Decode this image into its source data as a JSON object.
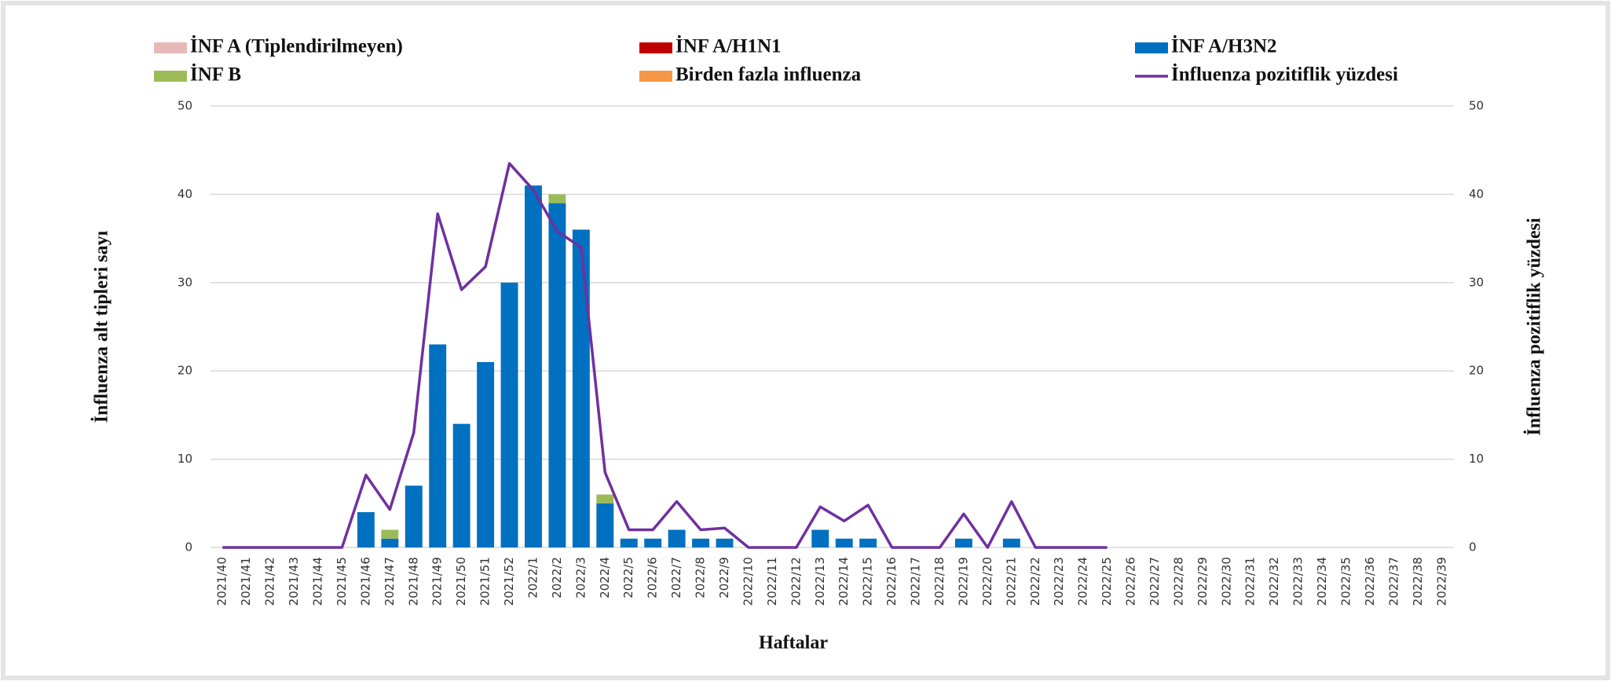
{
  "chart_data": {
    "type": "bar",
    "categories": [
      "2021/40",
      "2021/41",
      "2021/42",
      "2021/43",
      "2021/44",
      "2021/45",
      "2021/46",
      "2021/47",
      "2021/48",
      "2021/49",
      "2021/50",
      "2021/51",
      "2021/52",
      "2022/1",
      "2022/2",
      "2022/3",
      "2022/4",
      "2022/5",
      "2022/6",
      "2022/7",
      "2022/8",
      "2022/9",
      "2022/10",
      "2022/11",
      "2022/12",
      "2022/13",
      "2022/14",
      "2022/15",
      "2022/16",
      "2022/17",
      "2022/18",
      "2022/19",
      "2022/20",
      "2022/21",
      "2022/22",
      "2022/23",
      "2022/24",
      "2022/25",
      "2022/26",
      "2022/27",
      "2022/28",
      "2022/29",
      "2022/30",
      "2022/31",
      "2022/32",
      "2022/33",
      "2022/34",
      "2022/35",
      "2022/36",
      "2022/37",
      "2022/38",
      "2022/39"
    ],
    "series": [
      {
        "name": "İNF A (Tiplendirilmeyen)",
        "color": "#e6b9b8",
        "values": [
          0,
          0,
          0,
          0,
          0,
          0,
          0,
          0,
          0,
          0,
          0,
          0,
          0,
          0,
          0,
          0,
          0,
          0,
          0,
          0,
          0,
          0,
          0,
          0,
          0,
          0,
          0,
          0,
          0,
          0,
          0,
          0,
          0,
          0,
          0,
          0,
          0,
          0,
          null,
          null,
          null,
          null,
          null,
          null,
          null,
          null,
          null,
          null,
          null,
          null,
          null,
          null
        ]
      },
      {
        "name": "İNF A/H1N1",
        "color": "#c00000",
        "values": [
          0,
          0,
          0,
          0,
          0,
          0,
          0,
          0,
          0,
          0,
          0,
          0,
          0,
          0,
          0,
          0,
          0,
          0,
          0,
          0,
          0,
          0,
          0,
          0,
          0,
          0,
          0,
          0,
          0,
          0,
          0,
          0,
          0,
          0,
          0,
          0,
          0,
          0,
          null,
          null,
          null,
          null,
          null,
          null,
          null,
          null,
          null,
          null,
          null,
          null,
          null,
          null
        ]
      },
      {
        "name": "İNF A/H3N2",
        "color": "#0070c0",
        "values": [
          0,
          0,
          0,
          0,
          0,
          0,
          4,
          1,
          7,
          23,
          14,
          21,
          30,
          41,
          39,
          36,
          5,
          1,
          1,
          2,
          1,
          1,
          0,
          0,
          0,
          2,
          1,
          1,
          0,
          0,
          0,
          1,
          0,
          1,
          0,
          0,
          0,
          0,
          null,
          null,
          null,
          null,
          null,
          null,
          null,
          null,
          null,
          null,
          null,
          null,
          null,
          null
        ]
      },
      {
        "name": "İNF B",
        "color": "#9bbb59",
        "values": [
          0,
          0,
          0,
          0,
          0,
          0,
          0,
          1,
          0,
          0,
          0,
          0,
          0,
          0,
          1,
          0,
          1,
          0,
          0,
          0,
          0,
          0,
          0,
          0,
          0,
          0,
          0,
          0,
          0,
          0,
          0,
          0,
          0,
          0,
          0,
          0,
          0,
          0,
          null,
          null,
          null,
          null,
          null,
          null,
          null,
          null,
          null,
          null,
          null,
          null,
          null,
          null
        ]
      },
      {
        "name": "Birden fazla influenza",
        "color": "#f79646",
        "values": [
          0,
          0,
          0,
          0,
          0,
          0,
          0,
          0,
          0,
          0,
          0,
          0,
          0,
          0,
          0,
          0,
          0,
          0,
          0,
          0,
          0,
          0,
          0,
          0,
          0,
          0,
          0,
          0,
          0,
          0,
          0,
          0,
          0,
          0,
          0,
          0,
          0,
          0,
          null,
          null,
          null,
          null,
          null,
          null,
          null,
          null,
          null,
          null,
          null,
          null,
          null,
          null
        ]
      },
      {
        "name": "İnfluenza pozitiflik yüzdesi",
        "color": "#7030a0",
        "type": "line",
        "axis": "y2",
        "values": [
          0,
          0,
          0,
          0,
          0,
          0,
          8.2,
          4.3,
          13,
          37.8,
          29.2,
          31.8,
          43.5,
          40.5,
          35.8,
          34,
          8.5,
          2,
          2,
          5.2,
          2,
          2.2,
          0,
          0,
          0,
          4.6,
          3,
          4.8,
          0,
          0,
          0,
          3.8,
          0,
          5.2,
          0,
          0,
          0,
          0,
          null,
          null,
          null,
          null,
          null,
          null,
          null,
          null,
          null,
          null,
          null,
          null,
          null,
          null
        ]
      }
    ],
    "ylabel": "İnfluenza alt tipleri sayı",
    "y2label": "İnfluenza pozitiflik yüzdesi",
    "xlabel": "Haftalar",
    "ylim": [
      0,
      50
    ],
    "yticks": [
      0,
      10,
      20,
      30,
      40,
      50
    ],
    "y2lim": [
      0,
      50
    ],
    "y2ticks": [
      0,
      10,
      20,
      30,
      40,
      50
    ],
    "stacked": true,
    "grid": true
  }
}
